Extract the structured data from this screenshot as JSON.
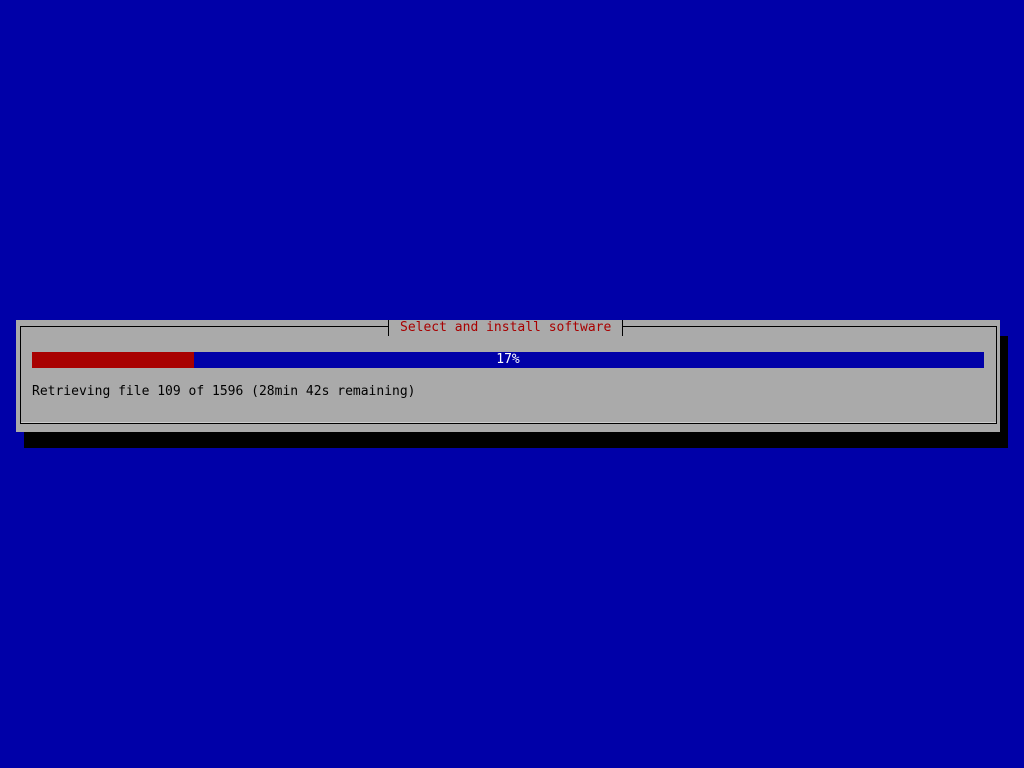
{
  "dialog": {
    "title": "Select and install software",
    "progress": {
      "percent": 17,
      "label": "17%"
    },
    "status_text": "Retrieving file 109 of 1596 (28min 42s remaining)"
  },
  "colors": {
    "background": "#0000a8",
    "dialog": "#aaaaaa",
    "title_text": "#a80000",
    "progress_fill": "#a80000",
    "progress_track": "#0000a8"
  }
}
